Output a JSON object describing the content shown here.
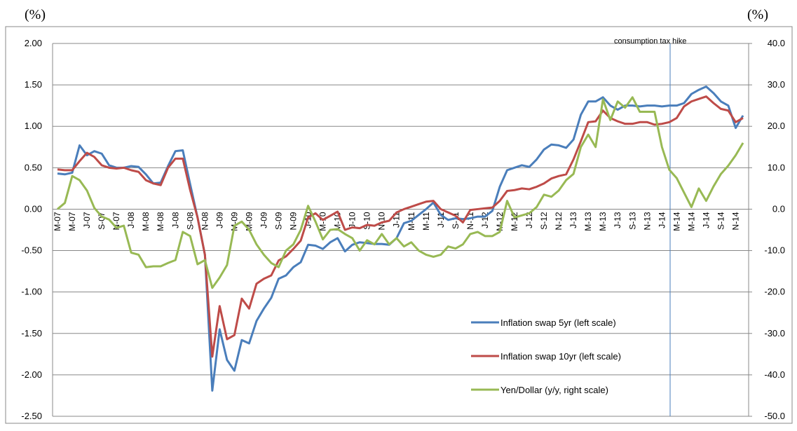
{
  "chart_data": {
    "type": "line",
    "y_unit": "(%)",
    "y2_unit": "(%)",
    "categories": [
      "M-07",
      null,
      "M-07",
      null,
      "J-07",
      null,
      "S-07",
      null,
      "N-07",
      null,
      "J-08",
      null,
      "M-08",
      null,
      "M-08",
      null,
      "J-08",
      null,
      "S-08",
      null,
      "N-08",
      null,
      "J-09",
      null,
      "M-09",
      null,
      "M-09",
      null,
      "J-09",
      null,
      "S-09",
      null,
      "N-09",
      null,
      "J-10",
      null,
      "M-10",
      null,
      "M-10",
      null,
      "J-10",
      null,
      "S-10",
      null,
      "N-10",
      null,
      "J-11",
      null,
      "M-11",
      null,
      "M-11",
      null,
      "J-11",
      null,
      "S-11",
      null,
      "N-11",
      null,
      "J-12",
      null,
      "M-12",
      null,
      "M-12",
      null,
      "J-12",
      null,
      "S-12",
      null,
      "N-12",
      null,
      "J-13",
      null,
      "M-13",
      null,
      "M-13",
      null,
      "J-13",
      null,
      "S-13",
      null,
      "N-13",
      null,
      "J-14",
      null,
      "M-14",
      null,
      "M-14",
      null,
      "J-14",
      null,
      "S-14",
      null,
      "N-14",
      null
    ],
    "series": [
      {
        "name": "Inflation swap 5yr   (left scale)",
        "color": "#4a7ebb",
        "axis": "y",
        "values": [
          0.43,
          0.42,
          0.44,
          0.77,
          0.65,
          0.7,
          0.67,
          0.53,
          0.5,
          0.5,
          0.52,
          0.51,
          0.42,
          0.31,
          0.32,
          0.52,
          0.7,
          0.71,
          0.3,
          -0.1,
          -0.55,
          -2.19,
          -1.45,
          -1.82,
          -1.95,
          -1.58,
          -1.62,
          -1.35,
          -1.2,
          -1.07,
          -0.84,
          -0.8,
          -0.7,
          -0.64,
          -0.43,
          -0.44,
          -0.48,
          -0.4,
          -0.35,
          -0.51,
          -0.43,
          -0.4,
          -0.41,
          -0.42,
          -0.42,
          -0.43,
          -0.35,
          -0.17,
          -0.14,
          -0.07,
          0.0,
          0.08,
          -0.07,
          -0.13,
          -0.11,
          -0.12,
          -0.11,
          -0.09,
          -0.09,
          -0.02,
          0.27,
          0.47,
          0.5,
          0.53,
          0.51,
          0.6,
          0.72,
          0.78,
          0.77,
          0.74,
          0.84,
          1.14,
          1.3,
          1.3,
          1.35,
          1.25,
          1.2,
          1.25,
          1.25,
          1.24,
          1.25,
          1.25,
          1.24,
          1.25,
          1.25,
          1.28,
          1.39,
          1.44,
          1.48,
          1.4,
          1.3,
          1.25,
          0.98,
          1.13
        ]
      },
      {
        "name": "Inflation swap 10yr (left scale)",
        "color": "#be4b48",
        "axis": "y",
        "values": [
          0.48,
          0.47,
          0.47,
          0.58,
          0.68,
          0.63,
          0.53,
          0.5,
          0.49,
          0.5,
          0.47,
          0.45,
          0.35,
          0.31,
          0.29,
          0.5,
          0.61,
          0.61,
          0.23,
          -0.1,
          -0.55,
          -1.78,
          -1.17,
          -1.57,
          -1.52,
          -1.08,
          -1.2,
          -0.9,
          -0.84,
          -0.8,
          -0.62,
          -0.57,
          -0.48,
          -0.38,
          -0.1,
          -0.05,
          -0.13,
          -0.08,
          -0.03,
          -0.25,
          -0.22,
          -0.23,
          -0.19,
          -0.2,
          -0.16,
          -0.14,
          -0.04,
          0.0,
          0.03,
          0.06,
          0.09,
          0.1,
          0.0,
          -0.04,
          -0.08,
          -0.16,
          -0.01,
          0.0,
          0.01,
          0.02,
          0.1,
          0.22,
          0.23,
          0.25,
          0.24,
          0.27,
          0.31,
          0.37,
          0.4,
          0.42,
          0.6,
          0.82,
          1.05,
          1.06,
          1.19,
          1.1,
          1.06,
          1.03,
          1.03,
          1.05,
          1.05,
          1.02,
          1.03,
          1.05,
          1.1,
          1.24,
          1.3,
          1.33,
          1.36,
          1.28,
          1.21,
          1.19,
          1.05,
          1.1
        ]
      },
      {
        "name": "Yen/Dollar (y/y, right scale)",
        "color": "#98b954",
        "axis": "y2",
        "values": [
          0,
          1.5,
          8,
          7,
          4.5,
          0.3,
          -1.8,
          -2.5,
          -4.5,
          -4,
          -10.5,
          -11,
          -14,
          -13.8,
          -13.8,
          -13,
          -12.3,
          -5.5,
          -6.5,
          -13.3,
          -12.3,
          -19,
          -16.5,
          -13.5,
          -4,
          -3,
          -5,
          -8.5,
          -11,
          -13,
          -14,
          -10,
          -8.5,
          -5,
          0.8,
          -3,
          -7.3,
          -5,
          -4.8,
          -6,
          -7,
          -10,
          -7.5,
          -8.5,
          -6,
          -8.5,
          -7,
          -9,
          -8,
          -10,
          -11,
          -11.5,
          -11,
          -9,
          -9.5,
          -8.5,
          -6,
          -5.5,
          -6.5,
          -6.5,
          -5.5,
          2,
          -2,
          -1.5,
          -1,
          0.5,
          3.5,
          3,
          4.5,
          7,
          8.5,
          15,
          18,
          15,
          26.5,
          21.5,
          26,
          24.5,
          27,
          23.5,
          23.5,
          23.5,
          15,
          9.5,
          7.5,
          4,
          0.5,
          5,
          2,
          5.5,
          8.5,
          10.5,
          13,
          16
        ]
      }
    ],
    "ylim": [
      -2.5,
      2.0
    ],
    "yticks": [
      {
        "value": 2,
        "label": "2.00"
      },
      {
        "value": 1.5,
        "label": "1.50"
      },
      {
        "value": 1,
        "label": "1.00"
      },
      {
        "value": 0.5,
        "label": "0.50"
      },
      {
        "value": 0,
        "label": "0.00"
      },
      {
        "value": -0.5,
        "label": "-0.50"
      },
      {
        "value": -1,
        "label": "-1.00"
      },
      {
        "value": -1.5,
        "label": "-1.50"
      },
      {
        "value": -2,
        "label": "-2.00"
      },
      {
        "value": -2.5,
        "label": "-2.50"
      }
    ],
    "y2lim": [
      -50,
      40
    ],
    "y2ticks": [
      {
        "value": 40,
        "label": "40.0"
      },
      {
        "value": 30,
        "label": "30.0"
      },
      {
        "value": 20,
        "label": "20.0"
      },
      {
        "value": 10,
        "label": "10.0"
      },
      {
        "value": 0,
        "label": "0.0"
      },
      {
        "value": -10,
        "label": "-10.0"
      },
      {
        "value": -20,
        "label": "-20.0"
      },
      {
        "value": -30,
        "label": "-30.0"
      },
      {
        "value": -40,
        "label": "-40.0"
      },
      {
        "value": -50,
        "label": "-50.0"
      }
    ],
    "grid": true,
    "annotation": "consumption tax hike"
  }
}
